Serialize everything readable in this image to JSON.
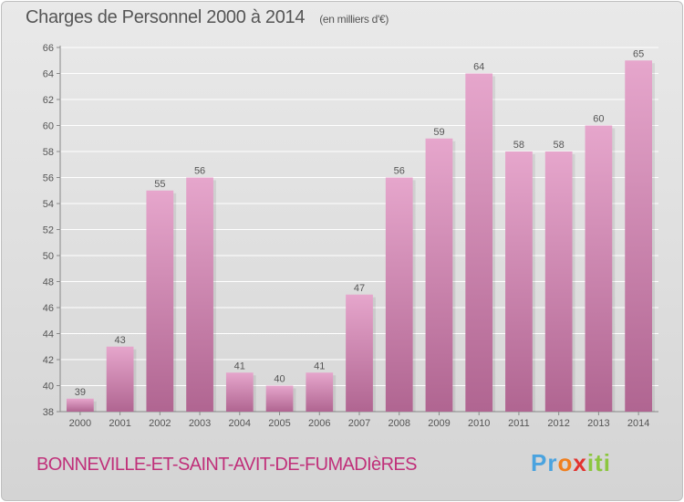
{
  "header": {
    "title": "Charges de Personnel 2000 à 2014",
    "unit": "(en milliers d'€)"
  },
  "footer": {
    "commune": "BONNEVILLE-ET-SAINT-AVIT-DE-FUMADIèRES",
    "logo": "Proxiti"
  },
  "colors": {
    "bar_top": "#e6a6cc",
    "bar_bottom": "#b06591",
    "commune_text": "#c0307a",
    "text": "#555555"
  },
  "chart_data": {
    "type": "bar",
    "title": "Charges de Personnel 2000 à 2014",
    "subtitle": "(en milliers d'€)",
    "categories": [
      "2000",
      "2001",
      "2002",
      "2003",
      "2004",
      "2005",
      "2006",
      "2007",
      "2008",
      "2009",
      "2010",
      "2011",
      "2012",
      "2013",
      "2014"
    ],
    "values": [
      39,
      43,
      55,
      56,
      41,
      40,
      41,
      47,
      56,
      59,
      64,
      58,
      58,
      60,
      65
    ],
    "ylim": [
      38,
      66
    ],
    "yticks": [
      38,
      40,
      42,
      44,
      46,
      48,
      50,
      52,
      54,
      56,
      58,
      60,
      62,
      64,
      66
    ],
    "grid": true,
    "xlabel": "",
    "ylabel": ""
  }
}
